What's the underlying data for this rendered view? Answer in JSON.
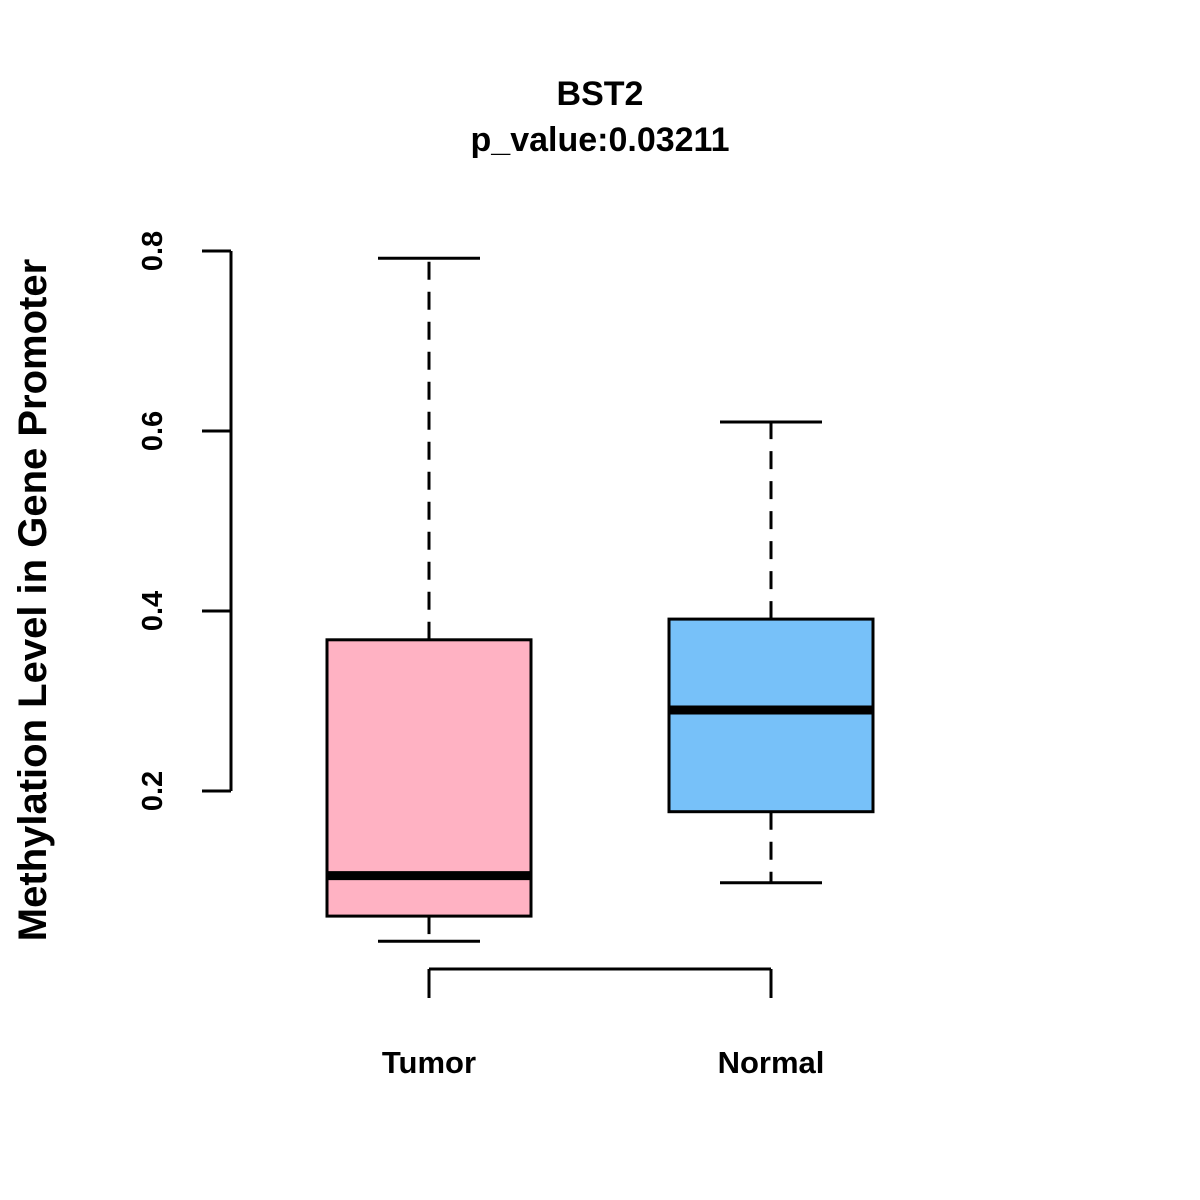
{
  "chart_data": {
    "type": "boxplot",
    "title": "BST2",
    "subtitle": "p_value:0.03211",
    "xlabel": "",
    "ylabel": "Methylation Level in Gene Promoter",
    "ylim": [
      0.03,
      0.8
    ],
    "yticks": [
      0.2,
      0.4,
      0.6,
      0.8
    ],
    "ytick_labels": [
      "0.2",
      "0.4",
      "0.6",
      "0.8"
    ],
    "grid": false,
    "categories": [
      "Tumor",
      "Normal"
    ],
    "series": [
      {
        "name": "Tumor",
        "color": "#FFB2C3",
        "whisker_low": 0.033,
        "q1": 0.061,
        "median": 0.106,
        "q3": 0.368,
        "whisker_high": 0.792
      },
      {
        "name": "Normal",
        "color": "#77C1F9",
        "whisker_low": 0.098,
        "q1": 0.177,
        "median": 0.29,
        "q3": 0.391,
        "whisker_high": 0.61
      }
    ]
  }
}
